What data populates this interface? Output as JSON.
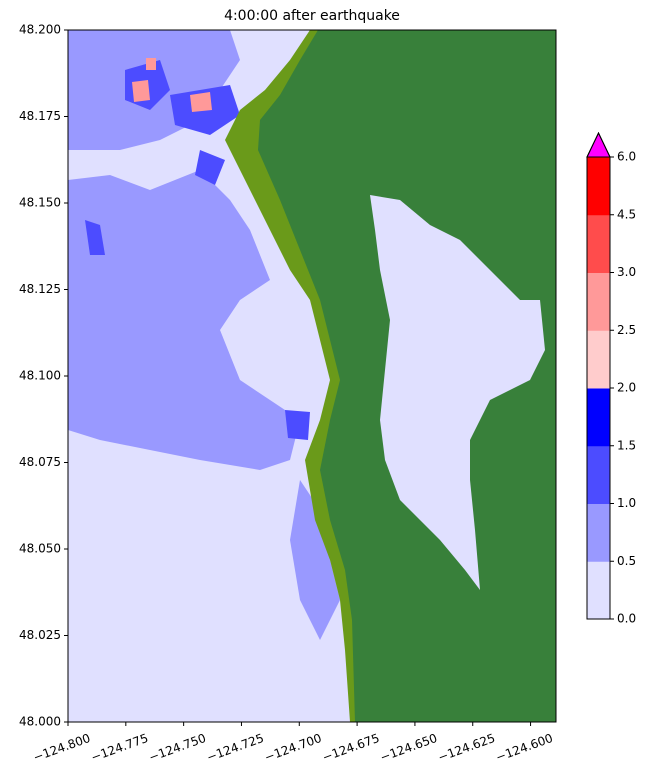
{
  "chart_data": {
    "type": "map",
    "title": "4:00:00 after earthquake",
    "xlim": [
      -124.8,
      -124.589
    ],
    "ylim": [
      48.0,
      48.2
    ],
    "xticks": [
      {
        "value": -124.8,
        "label": "−124.800"
      },
      {
        "value": -124.775,
        "label": "−124.775"
      },
      {
        "value": -124.75,
        "label": "−124.750"
      },
      {
        "value": -124.725,
        "label": "−124.725"
      },
      {
        "value": -124.7,
        "label": "−124.700"
      },
      {
        "value": -124.675,
        "label": "−124.675"
      },
      {
        "value": -124.65,
        "label": "−124.650"
      },
      {
        "value": -124.625,
        "label": "−124.625"
      },
      {
        "value": -124.6,
        "label": "−124.600"
      }
    ],
    "yticks": [
      {
        "value": 48.0,
        "label": "48.000"
      },
      {
        "value": 48.025,
        "label": "48.025"
      },
      {
        "value": 48.05,
        "label": "48.050"
      },
      {
        "value": 48.075,
        "label": "48.075"
      },
      {
        "value": 48.1,
        "label": "48.100"
      },
      {
        "value": 48.125,
        "label": "48.125"
      },
      {
        "value": 48.15,
        "label": "48.150"
      },
      {
        "value": 48.175,
        "label": "48.175"
      },
      {
        "value": 48.2,
        "label": "48.200"
      }
    ],
    "colorbar": {
      "levels": [
        {
          "value": 0,
          "label": "0.0"
        },
        {
          "value": 0.5,
          "label": "0.5"
        },
        {
          "value": 1,
          "label": "1.0"
        },
        {
          "value": 1.5,
          "label": "1.5"
        },
        {
          "value": 2,
          "label": "2.0"
        },
        {
          "value": 2.5,
          "label": "2.5"
        },
        {
          "value": 3,
          "label": "3.0"
        },
        {
          "value": 4.5,
          "label": "4.5"
        },
        {
          "value": 6,
          "label": "6.0"
        }
      ],
      "colors": [
        "#e0e0ff",
        "#9999ff",
        "#4c4cff",
        "#0000ff",
        "#ffcccc",
        "#ff9999",
        "#ff4c4c",
        "#ff0000"
      ],
      "extend_color": "#ff00ff"
    }
  }
}
